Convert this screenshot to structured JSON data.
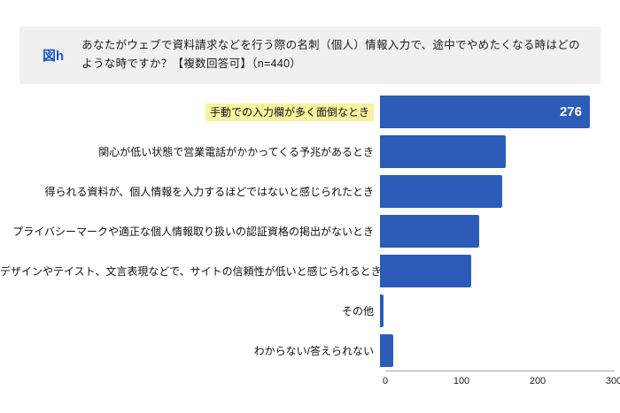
{
  "header": {
    "tag": "図h",
    "title": "あなたがウェブで資料請求などを行う際の名刺（個人）情報入力で、途中でやめたくなる時はどのような時ですか？【複数回答可】（n=440）"
  },
  "chart_data": {
    "type": "bar",
    "orientation": "horizontal",
    "title": "あなたがウェブで資料請求などを行う際の名刺（個人）情報入力で、途中でやめたくなる時はどのような時ですか？【複数回答可】（n=440）",
    "categories": [
      "手動での入力欄が多く面倒なとき",
      "関心が低い状態で営業電話がかかってくる予兆があるとき",
      "得られる資料が、個人情報を入力するほどではないと感じられたとき",
      "プライバシーマークや適正な個人情報取り扱いの認証資格の掲出がないとき",
      "デザインやテイスト、文言表現などで、サイトの信頼性が低いと感じられるとき",
      "その他",
      "わからない/答えられない"
    ],
    "values": [
      276,
      165,
      160,
      130,
      120,
      5,
      18
    ],
    "data_labels": [
      "276",
      "",
      "",
      "",
      "",
      "",
      ""
    ],
    "highlighted_category_index": 0,
    "xlabel": "",
    "ylabel": "",
    "xlim": [
      0,
      300
    ],
    "x_ticks": [
      0,
      100,
      200,
      300
    ],
    "grid": false,
    "legend": "none",
    "bar_color": "#2d5cb8",
    "highlight_bg": "#f9f2a0",
    "axis_color": "#a8a8a8",
    "n": 440
  }
}
